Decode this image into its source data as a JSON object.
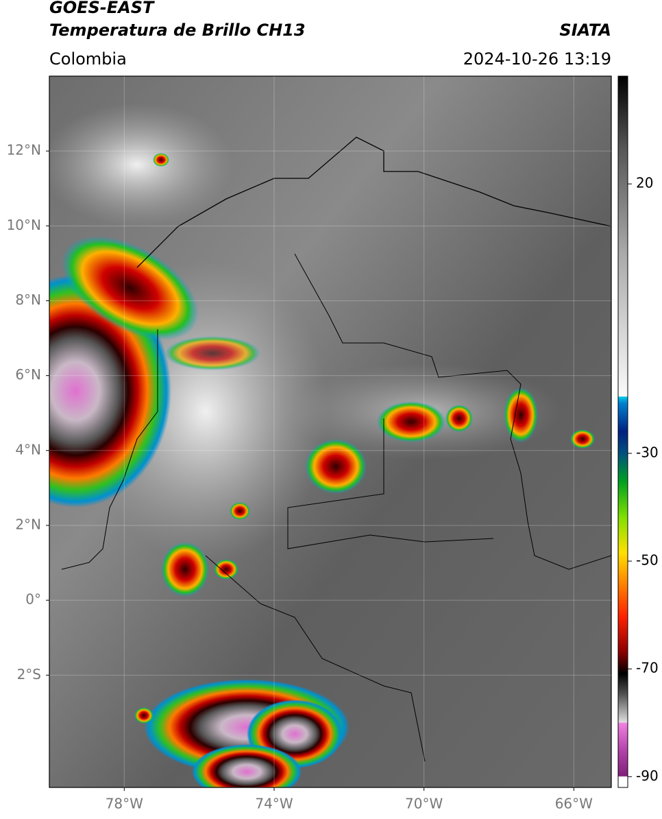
{
  "header": {
    "title": "GOES-EAST",
    "subtitle": "Temperatura de Brillo CH13",
    "source": "SIATA",
    "region": "Colombia",
    "datetime": "2024-10-26 13:19"
  },
  "map": {
    "lonlim": [
      -80,
      -65
    ],
    "latlim": [
      -5,
      14
    ],
    "lon_ticks": [
      {
        "value": -78,
        "label": "78°W"
      },
      {
        "value": -74,
        "label": "74°W"
      },
      {
        "value": -70,
        "label": "70°W"
      },
      {
        "value": -66,
        "label": "66°W"
      }
    ],
    "lat_ticks": [
      {
        "value": 12,
        "label": "12°N"
      },
      {
        "value": 10,
        "label": "10°N"
      },
      {
        "value": 8,
        "label": "8°N"
      },
      {
        "value": 6,
        "label": "6°N"
      },
      {
        "value": 4,
        "label": "4°N"
      },
      {
        "value": 2,
        "label": "2°N"
      },
      {
        "value": 0,
        "label": "0°"
      },
      {
        "value": -2,
        "label": "2°S"
      }
    ],
    "grid": true
  },
  "colorbar": {
    "lim": [
      -92,
      40
    ],
    "ticks": [
      20,
      -30,
      -50,
      -70,
      -90
    ]
  }
}
